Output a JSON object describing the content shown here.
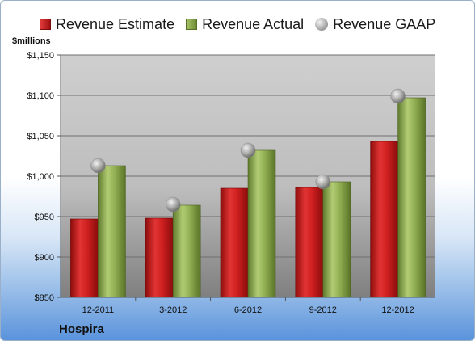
{
  "chart_data": {
    "type": "bar",
    "title": "",
    "ylabel": "$millions",
    "xlabel": "",
    "categories": [
      "12-2011",
      "3-2012",
      "6-2012",
      "9-2012",
      "12-2012"
    ],
    "series": [
      {
        "name": "Revenue Estimate",
        "kind": "bar",
        "color": "#c01818",
        "values": [
          947,
          948,
          985,
          986,
          1043
        ]
      },
      {
        "name": "Revenue Actual",
        "kind": "bar",
        "color": "#87a74a",
        "values": [
          1013,
          964,
          1032,
          993,
          1097
        ]
      },
      {
        "name": "Revenue GAAP",
        "kind": "marker",
        "color": "#b0b0b0",
        "values": [
          1013,
          965,
          1032,
          993,
          1099
        ]
      }
    ],
    "ylim": [
      850,
      1150
    ],
    "yticks": [
      850,
      900,
      950,
      1000,
      1050,
      1100,
      1150
    ],
    "ytick_labels": [
      "$850",
      "$900",
      "$950",
      "$1,000",
      "$1,050",
      "$1,100",
      "$1,150"
    ],
    "grid": true,
    "legend_position": "top"
  },
  "labels": {
    "unit": "$millions",
    "company": "Hospira",
    "legend": [
      "Revenue Estimate",
      "Revenue Actual",
      "Revenue GAAP"
    ]
  }
}
